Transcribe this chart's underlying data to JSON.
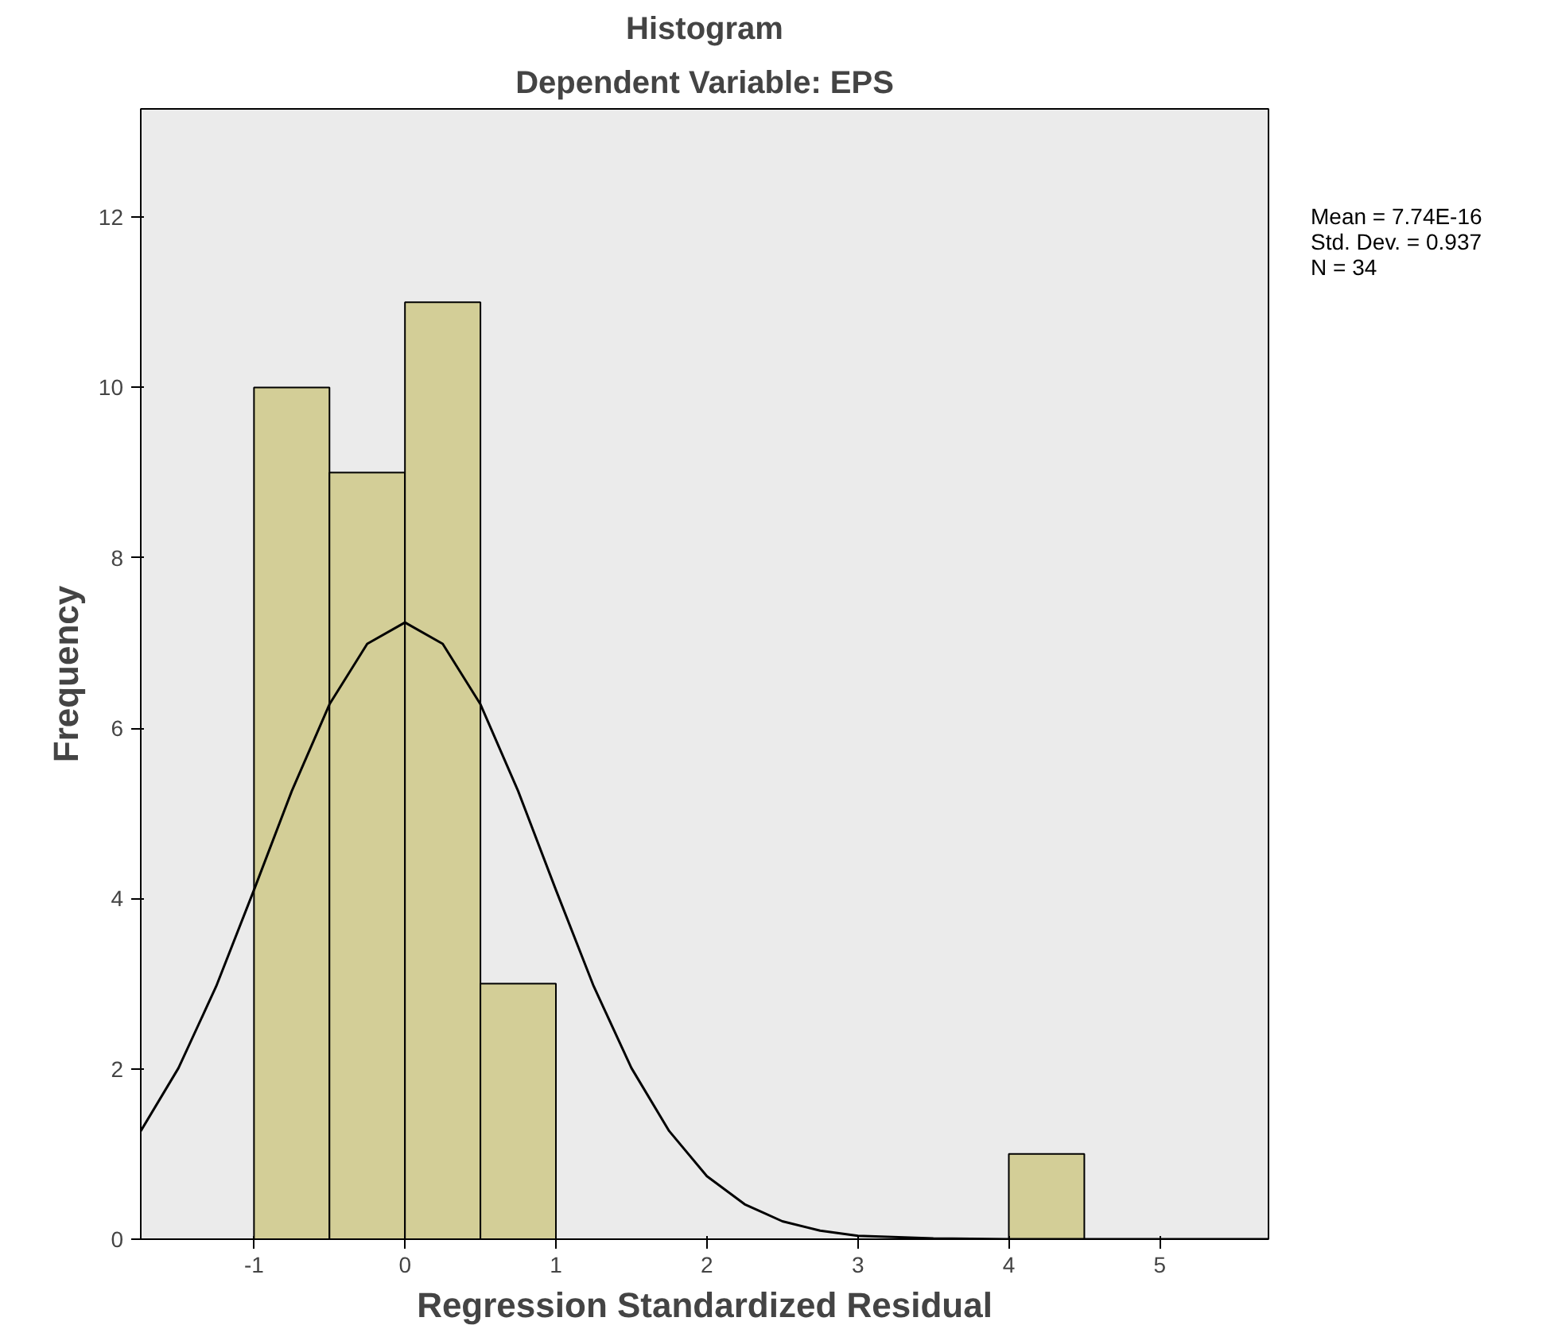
{
  "chart_data": {
    "type": "histogram",
    "title": "Histogram",
    "subtitle": "Dependent Variable: EPS",
    "xlabel": "Regression Standardized Residual",
    "ylabel": "Frequency",
    "bins": [
      -1,
      -0.5,
      0,
      0.5,
      1,
      1.5,
      2,
      2.5,
      3,
      3.5,
      4,
      4.5
    ],
    "values": [
      10,
      9,
      11,
      3,
      0,
      0,
      0,
      0,
      0,
      0,
      1
    ],
    "color": "#d3ce97",
    "series": [
      {
        "type": "line",
        "color": "#000000",
        "x": [
          -1.75,
          -1.5,
          -1.25,
          -1,
          -0.75,
          -0.5,
          -0.25,
          0,
          0.25,
          0.5,
          0.75,
          1,
          1.25,
          1.5,
          1.75,
          2,
          2.25,
          2.5,
          2.75,
          3,
          3.5,
          4,
          4.5,
          5,
          5.72
        ],
        "values": [
          1.27,
          2.01,
          2.97,
          4.1,
          5.26,
          6.28,
          6.99,
          7.24,
          6.99,
          6.28,
          5.26,
          4.1,
          2.97,
          2.01,
          1.27,
          0.74,
          0.41,
          0.21,
          0.1,
          0.04,
          0.01,
          0,
          0,
          0,
          0
        ]
      }
    ],
    "xlim": [
      -1.75,
      5.72
    ],
    "ylim": [
      0,
      13.27
    ],
    "xticks": [
      -1,
      0,
      1,
      2,
      3,
      4,
      5
    ],
    "yticks": [
      0,
      2,
      4,
      6,
      8,
      10,
      12
    ],
    "grid": false,
    "marker": "none",
    "line_style": "solid",
    "annotations": [
      "Mean = 7.74E-16",
      "Std. Dev. = 0.937",
      "N = 34"
    ]
  }
}
